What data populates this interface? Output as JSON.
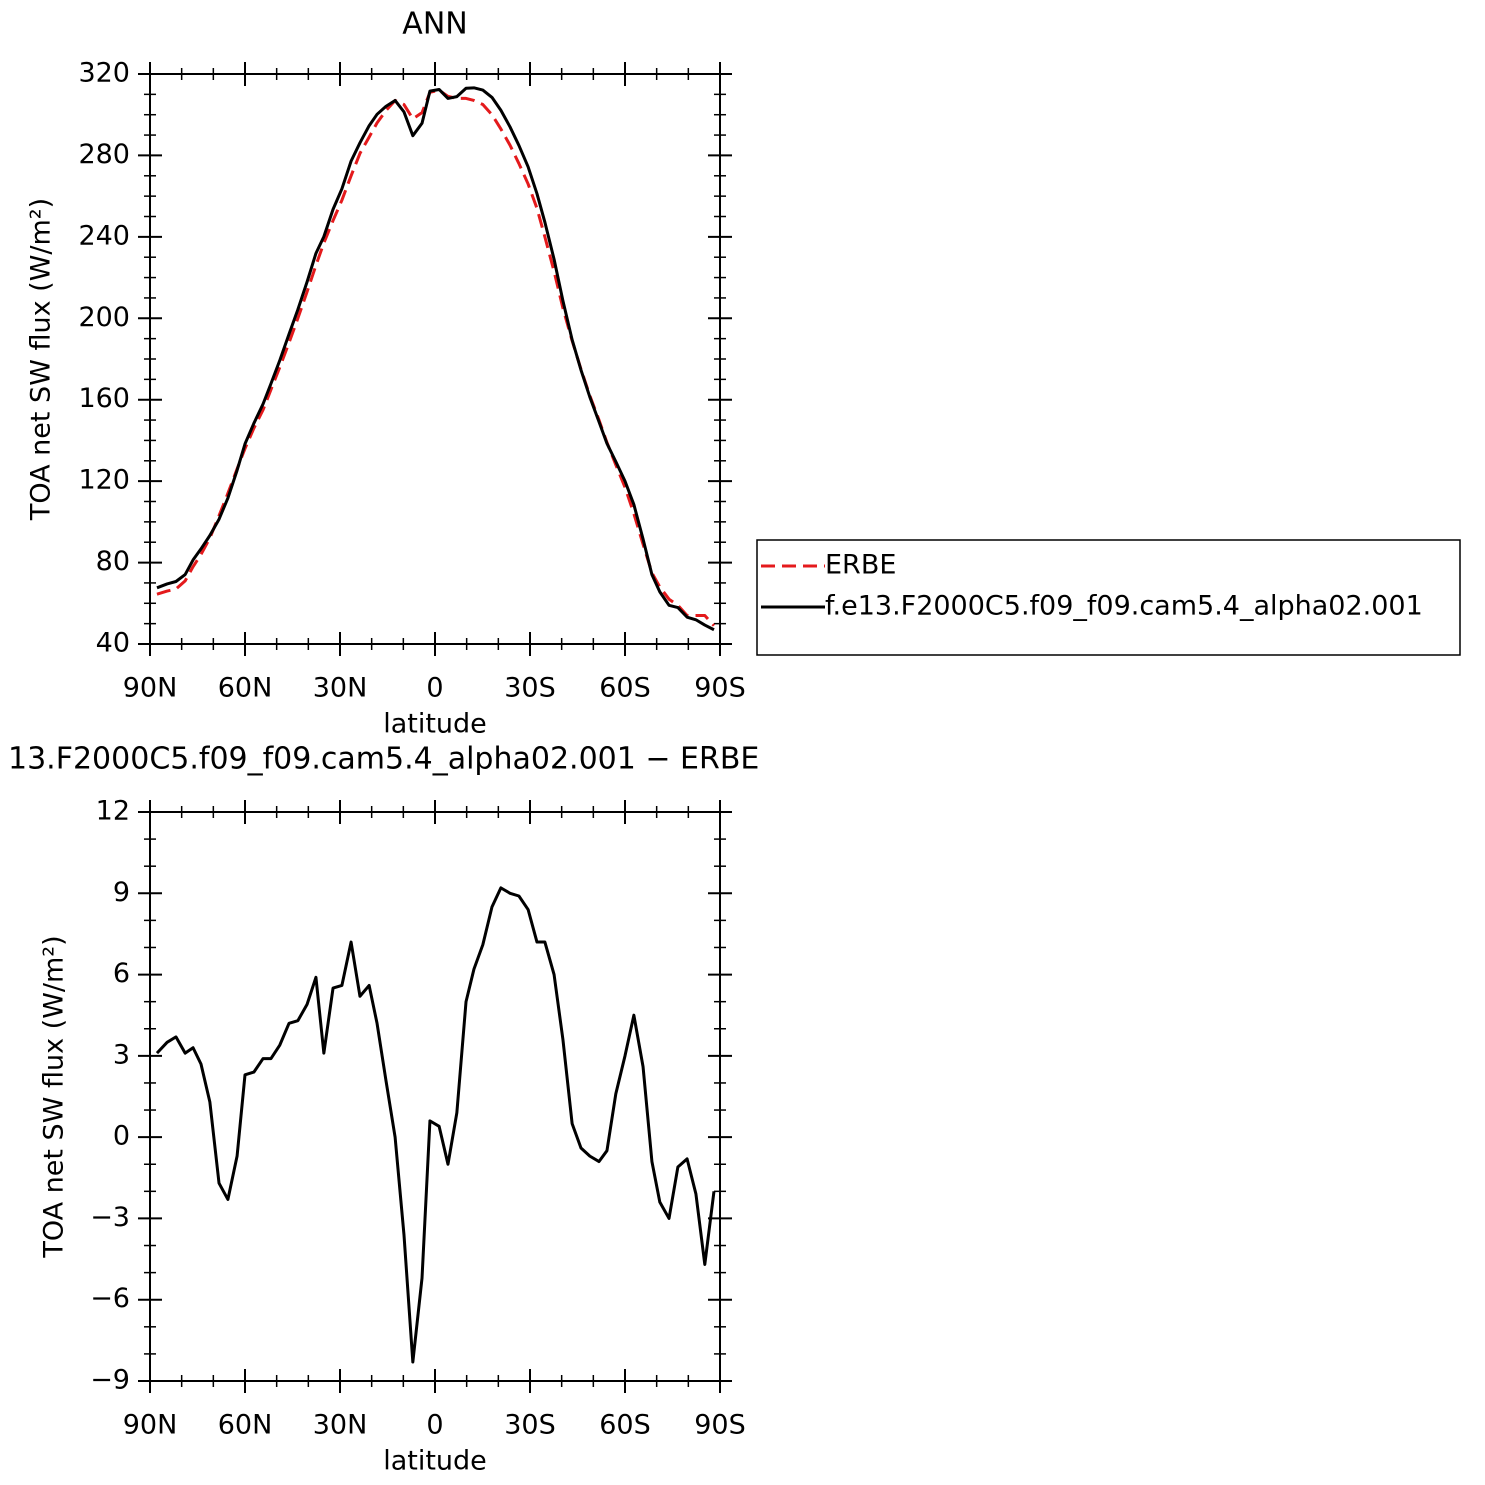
{
  "chart_data": [
    {
      "type": "line",
      "title": "ANN",
      "x_label": "latitude",
      "y_label": "TOA net SW flux (W/m²)",
      "x": [
        87.8,
        84.6,
        81.8,
        78.9,
        76.4,
        73.9,
        71.1,
        68.2,
        65.4,
        62.5,
        60.0,
        57.2,
        54.3,
        51.8,
        49.0,
        46.1,
        43.3,
        40.4,
        37.6,
        35.1,
        32.2,
        29.4,
        26.5,
        23.7,
        20.8,
        18.3,
        15.5,
        12.6,
        9.8,
        7.0,
        4.1,
        1.6,
        -1.3,
        -4.1,
        -6.9,
        -9.8,
        -12.3,
        -15.1,
        -18.0,
        -20.8,
        -23.7,
        -26.5,
        -29.4,
        -32.2,
        -34.7,
        -37.6,
        -40.4,
        -43.3,
        -46.1,
        -48.9,
        -51.8,
        -54.3,
        -57.1,
        -60.0,
        -62.8,
        -65.7,
        -68.5,
        -71.0,
        -73.9,
        -76.7,
        -79.6,
        -82.4,
        -85.2,
        -88.1
      ],
      "series": [
        {
          "name": "ERBE",
          "color": "#e41a1c",
          "dash": "dashed",
          "values": [
            64.5,
            66,
            67,
            71,
            78,
            84,
            92,
            103,
            114,
            126,
            136,
            146,
            155,
            165,
            176,
            188,
            200,
            213,
            226,
            237,
            248,
            258,
            270,
            281,
            289,
            296,
            302,
            307,
            305,
            298,
            301,
            311,
            312,
            309,
            308,
            308,
            307,
            305,
            300,
            293,
            285,
            276,
            266,
            254,
            240,
            223,
            205,
            189,
            175,
            162,
            150,
            139,
            128,
            117,
            104,
            89,
            75,
            68,
            62,
            59,
            54,
            54,
            54,
            49
          ]
        },
        {
          "name": "f.e13.F2000C5.f09_f09.cam5.4_alpha02.001",
          "color": "#000000",
          "dash": "solid",
          "values": [
            67.6,
            69.5,
            70.7,
            74.1,
            81.3,
            86.7,
            93.3,
            101.3,
            111.7,
            125.3,
            138.3,
            148.4,
            157.9,
            167.9,
            179.4,
            192.2,
            204.3,
            217.9,
            231.9,
            240.1,
            253.5,
            263.6,
            277.2,
            286.2,
            294.6,
            300.2,
            304.1,
            307.0,
            301.4,
            289.7,
            295.8,
            311.6,
            312.4,
            308.0,
            308.9,
            313.0,
            313.2,
            312.1,
            308.5,
            302.2,
            294.0,
            284.9,
            274.4,
            261.2,
            247.2,
            229.0,
            208.6,
            189.5,
            174.6,
            161.3,
            149.1,
            138.5,
            129.6,
            120.0,
            108.5,
            91.6,
            74.1,
            65.6,
            59.0,
            57.9,
            53.2,
            51.9,
            49.3,
            47.0
          ]
        }
      ],
      "xlim": [
        90,
        -90
      ],
      "xticks": [
        {
          "value": 90,
          "label": "90N"
        },
        {
          "value": 60,
          "label": "60N"
        },
        {
          "value": 30,
          "label": "30N"
        },
        0,
        {
          "value": -30,
          "label": "30S"
        },
        {
          "value": -60,
          "label": "60S"
        },
        {
          "value": -90,
          "label": "90S"
        }
      ],
      "ylim": [
        40,
        320
      ],
      "yticks": [
        40,
        80,
        120,
        160,
        200,
        240,
        280,
        320
      ],
      "legend": "right"
    },
    {
      "type": "line",
      "title": "13.F2000C5.f09_f09.cam5.4_alpha02.001 − ERBE",
      "x_label": "latitude",
      "y_label": "TOA net SW flux (W/m²)",
      "x": [
        87.8,
        84.6,
        81.8,
        78.9,
        76.4,
        73.9,
        71.1,
        68.2,
        65.4,
        62.5,
        60.0,
        57.2,
        54.3,
        51.8,
        49.0,
        46.1,
        43.3,
        40.4,
        37.6,
        35.1,
        32.2,
        29.4,
        26.5,
        23.7,
        20.8,
        18.3,
        15.5,
        12.6,
        9.8,
        7.0,
        4.1,
        1.6,
        -1.3,
        -4.1,
        -6.9,
        -9.8,
        -12.3,
        -15.1,
        -18.0,
        -20.8,
        -23.7,
        -26.5,
        -29.4,
        -32.2,
        -34.7,
        -37.6,
        -40.4,
        -43.3,
        -46.1,
        -48.9,
        -51.8,
        -54.3,
        -57.1,
        -60.0,
        -62.8,
        -65.7,
        -68.5,
        -71.0,
        -73.9,
        -76.7,
        -79.6,
        -82.4,
        -85.2,
        -88.1
      ],
      "series": [
        {
          "color": "#000000",
          "dash": "solid",
          "values": [
            3.1,
            3.5,
            3.7,
            3.1,
            3.3,
            2.7,
            1.3,
            -1.7,
            -2.3,
            -0.7,
            2.3,
            2.4,
            2.9,
            2.9,
            3.4,
            4.2,
            4.3,
            4.9,
            5.9,
            3.1,
            5.5,
            5.6,
            7.2,
            5.2,
            5.6,
            4.2,
            2.1,
            0.0,
            -3.6,
            -8.3,
            -5.2,
            0.6,
            0.4,
            -1.0,
            0.9,
            5.0,
            6.2,
            7.1,
            8.5,
            9.2,
            9.0,
            8.9,
            8.4,
            7.2,
            7.2,
            6.0,
            3.6,
            0.5,
            -0.4,
            -0.7,
            -0.9,
            -0.5,
            1.6,
            3.0,
            4.5,
            2.6,
            -0.9,
            -2.4,
            -3.0,
            -1.1,
            -0.8,
            -2.1,
            -4.7,
            -2.0
          ]
        }
      ],
      "xlim": [
        90,
        -90
      ],
      "xticks": [
        {
          "value": 90,
          "label": "90N"
        },
        {
          "value": 60,
          "label": "60N"
        },
        {
          "value": 30,
          "label": "30N"
        },
        0,
        {
          "value": -30,
          "label": "30S"
        },
        {
          "value": -60,
          "label": "60S"
        },
        {
          "value": -90,
          "label": "90S"
        }
      ],
      "ylim": [
        -9,
        12
      ],
      "yticks": [
        {
          "value": -9,
          "label": "−9"
        },
        {
          "value": -6,
          "label": "−6"
        },
        {
          "value": -3,
          "label": "−3"
        },
        0,
        3,
        6,
        9,
        12
      ]
    }
  ]
}
